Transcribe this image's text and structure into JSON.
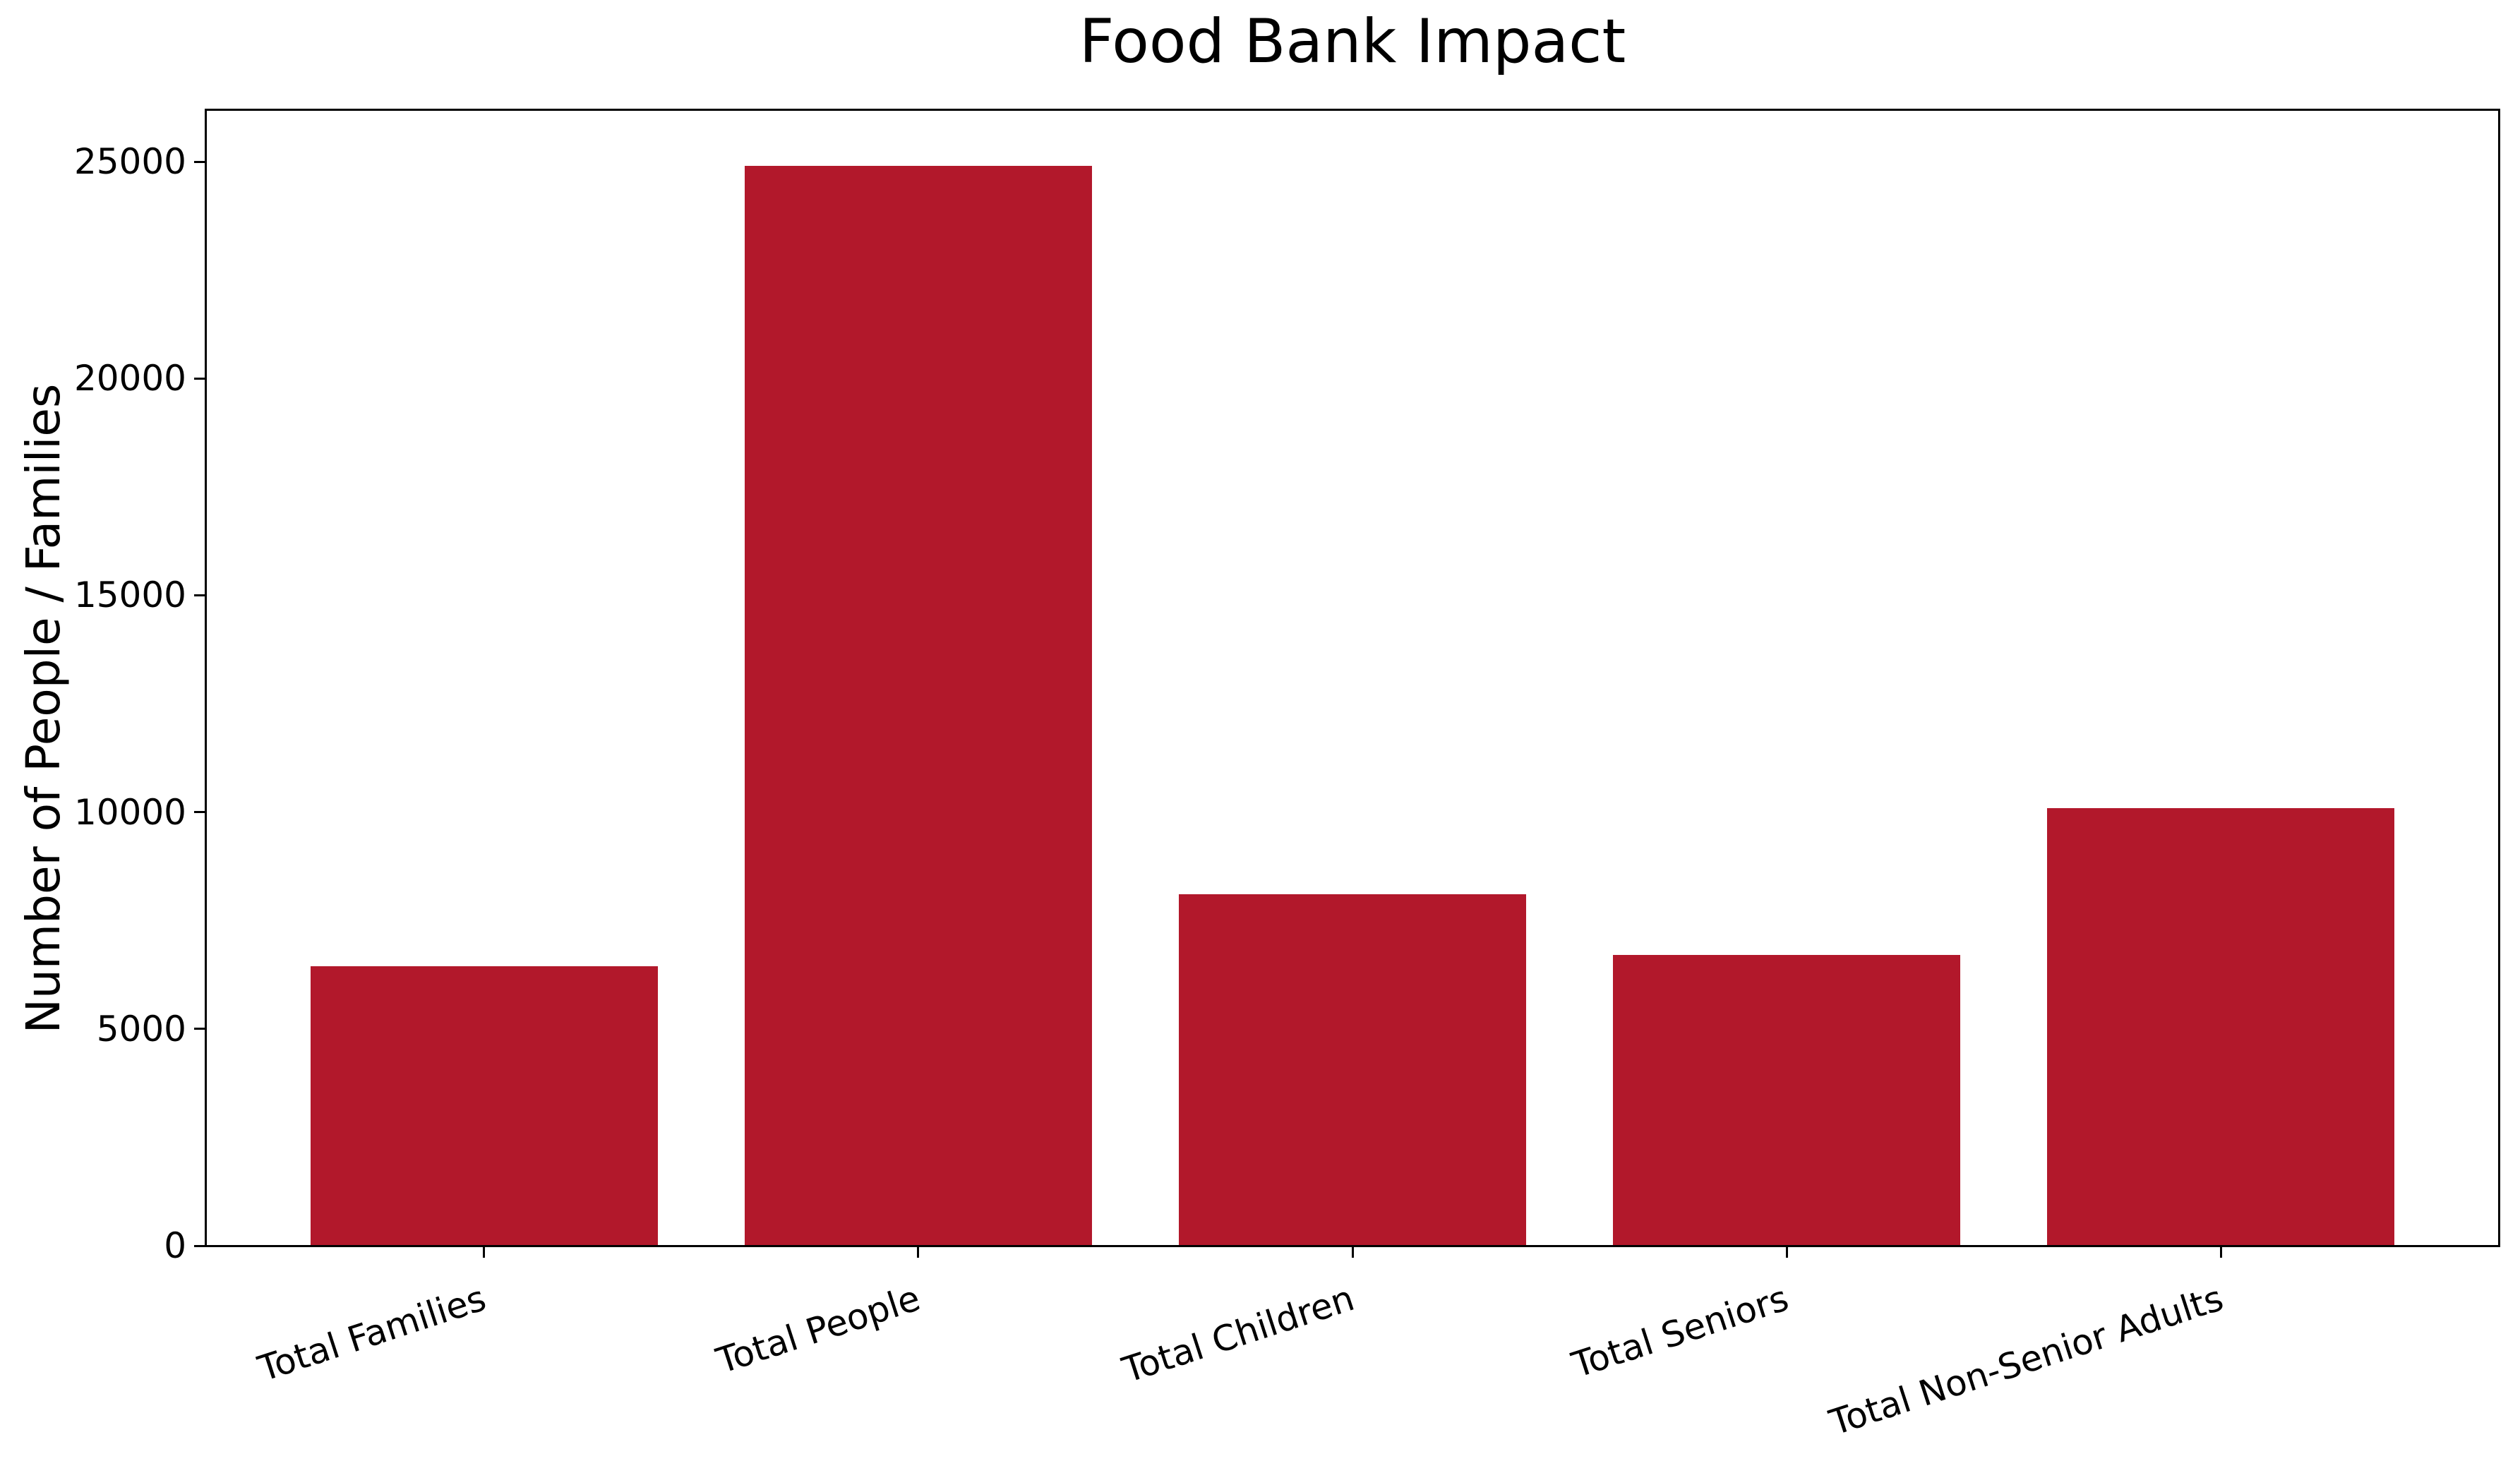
{
  "figure": {
    "background": "#ffffff"
  },
  "chart_data": {
    "type": "bar",
    "title": "Food Bank Impact",
    "xlabel": "",
    "ylabel": "Number of People / Families",
    "categories": [
      "Total Families",
      "Total People",
      "Total Children",
      "Total Seniors",
      "Total Non-Senior Adults"
    ],
    "values": [
      6450,
      24900,
      8100,
      6700,
      10100
    ],
    "yticks": [
      0,
      5000,
      10000,
      15000,
      20000,
      25000
    ],
    "ylim": [
      0,
      26190
    ],
    "xlim": [
      -0.64,
      4.64
    ],
    "bar_width": 0.8,
    "bar_color": "#b2182b",
    "text_color": "#000000",
    "spine_color": "#000000",
    "background_color": "#ffffff",
    "grid": false,
    "legend": null,
    "xtick_rotation_deg": 18
  }
}
